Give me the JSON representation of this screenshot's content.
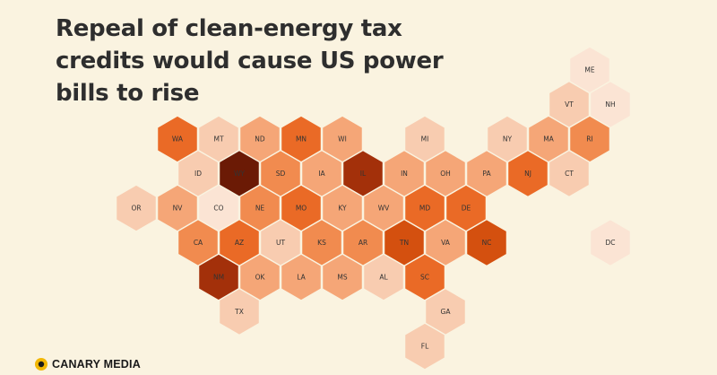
{
  "title": "Repeal of clean-energy tax credits would cause US power bills to rise",
  "logo": {
    "name": "CANARY MEDIA"
  },
  "colors": {
    "background": "#faf3e0",
    "scale": [
      "#fbe4d4",
      "#f8ccb0",
      "#f5a677",
      "#f18b4f",
      "#ea6a26",
      "#d4500f",
      "#a3300a",
      "#6b1a05"
    ],
    "stroke": "#faf3e0"
  },
  "states": [
    {
      "abbr": "ME",
      "col": 11,
      "row": 0,
      "level": 0
    },
    {
      "abbr": "VT",
      "col": 10,
      "row": 1,
      "level": 1
    },
    {
      "abbr": "NH",
      "col": 11,
      "row": 1,
      "level": 0
    },
    {
      "abbr": "WA",
      "col": 1,
      "row": 2,
      "level": 4
    },
    {
      "abbr": "MT",
      "col": 2,
      "row": 2,
      "level": 1
    },
    {
      "abbr": "ND",
      "col": 3,
      "row": 2,
      "level": 2
    },
    {
      "abbr": "MN",
      "col": 4,
      "row": 2,
      "level": 4
    },
    {
      "abbr": "WI",
      "col": 5,
      "row": 2,
      "level": 2
    },
    {
      "abbr": "MI",
      "col": 7,
      "row": 2,
      "level": 1
    },
    {
      "abbr": "NY",
      "col": 9,
      "row": 2,
      "level": 1
    },
    {
      "abbr": "MA",
      "col": 10,
      "row": 2,
      "level": 2
    },
    {
      "abbr": "RI",
      "col": 11,
      "row": 2,
      "level": 3
    },
    {
      "abbr": "ID",
      "col": 1,
      "row": 3,
      "level": 1
    },
    {
      "abbr": "WY",
      "col": 2,
      "row": 3,
      "level": 7
    },
    {
      "abbr": "SD",
      "col": 3,
      "row": 3,
      "level": 3
    },
    {
      "abbr": "IA",
      "col": 4,
      "row": 3,
      "level": 2
    },
    {
      "abbr": "IL",
      "col": 5,
      "row": 3,
      "level": 6
    },
    {
      "abbr": "IN",
      "col": 6,
      "row": 3,
      "level": 2
    },
    {
      "abbr": "OH",
      "col": 7,
      "row": 3,
      "level": 2
    },
    {
      "abbr": "PA",
      "col": 8,
      "row": 3,
      "level": 2
    },
    {
      "abbr": "NJ",
      "col": 9,
      "row": 3,
      "level": 4
    },
    {
      "abbr": "CT",
      "col": 10,
      "row": 3,
      "level": 1
    },
    {
      "abbr": "OR",
      "col": 0,
      "row": 4,
      "level": 1
    },
    {
      "abbr": "NV",
      "col": 1,
      "row": 4,
      "level": 2
    },
    {
      "abbr": "CO",
      "col": 2,
      "row": 4,
      "level": 0
    },
    {
      "abbr": "NE",
      "col": 3,
      "row": 4,
      "level": 3
    },
    {
      "abbr": "MO",
      "col": 4,
      "row": 4,
      "level": 4
    },
    {
      "abbr": "KY",
      "col": 5,
      "row": 4,
      "level": 2
    },
    {
      "abbr": "WV",
      "col": 6,
      "row": 4,
      "level": 2
    },
    {
      "abbr": "MD",
      "col": 7,
      "row": 4,
      "level": 4
    },
    {
      "abbr": "DE",
      "col": 8,
      "row": 4,
      "level": 4
    },
    {
      "abbr": "CA",
      "col": 1,
      "row": 5,
      "level": 3
    },
    {
      "abbr": "AZ",
      "col": 2,
      "row": 5,
      "level": 4
    },
    {
      "abbr": "UT",
      "col": 3,
      "row": 5,
      "level": 1
    },
    {
      "abbr": "KS",
      "col": 4,
      "row": 5,
      "level": 3
    },
    {
      "abbr": "AR",
      "col": 5,
      "row": 5,
      "level": 3
    },
    {
      "abbr": "TN",
      "col": 6,
      "row": 5,
      "level": 5
    },
    {
      "abbr": "VA",
      "col": 7,
      "row": 5,
      "level": 2
    },
    {
      "abbr": "NC",
      "col": 8,
      "row": 5,
      "level": 5
    },
    {
      "abbr": "DC",
      "col": 11,
      "row": 5,
      "level": 0
    },
    {
      "abbr": "NM",
      "col": 2,
      "row": 6,
      "level": 6
    },
    {
      "abbr": "OK",
      "col": 3,
      "row": 6,
      "level": 2
    },
    {
      "abbr": "LA",
      "col": 4,
      "row": 6,
      "level": 2
    },
    {
      "abbr": "MS",
      "col": 5,
      "row": 6,
      "level": 2
    },
    {
      "abbr": "AL",
      "col": 6,
      "row": 6,
      "level": 1
    },
    {
      "abbr": "SC",
      "col": 7,
      "row": 6,
      "level": 4
    },
    {
      "abbr": "TX",
      "col": 2,
      "row": 7,
      "level": 1
    },
    {
      "abbr": "GA",
      "col": 7,
      "row": 7,
      "level": 1
    },
    {
      "abbr": "FL",
      "col": 7,
      "row": 8,
      "level": 1
    }
  ]
}
